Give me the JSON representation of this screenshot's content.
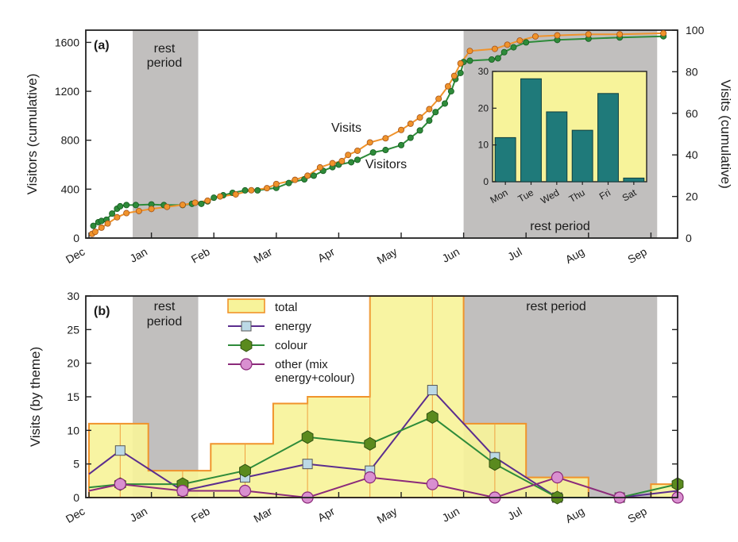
{
  "chart_data": [
    {
      "panel": "(a)",
      "type": "line",
      "xlabel": "",
      "ylabel": "Visitors (cumulative)",
      "ylabel_right": "Visits (cumulative)",
      "month_ticks": [
        "Dec",
        "Jan",
        "Feb",
        "Mar",
        "Apr",
        "May",
        "Jun",
        "Jul",
        "Aug",
        "Sep"
      ],
      "ylim": [
        0,
        1700
      ],
      "yticks": [
        0,
        400,
        800,
        1200,
        1600
      ],
      "ylim_right": [
        0,
        100
      ],
      "yticks_right": [
        0,
        20,
        40,
        60,
        80,
        100
      ],
      "x_unit": "months since Dec 1",
      "rest_periods": [
        {
          "label": "rest\nperiod",
          "label_lines": [
            "rest",
            "period"
          ],
          "start": 0.7,
          "end": 1.75
        },
        {
          "label": "rest period",
          "label_lines": [
            "rest period"
          ],
          "start": 6.0,
          "end": 9.1
        }
      ],
      "series": [
        {
          "name": "Visitors",
          "axis": "left",
          "color": "#2e8b3a",
          "marker": "circle",
          "points": [
            [
              0.07,
              100
            ],
            [
              0.15,
              130
            ],
            [
              0.2,
              140
            ],
            [
              0.28,
              150
            ],
            [
              0.37,
              200
            ],
            [
              0.45,
              240
            ],
            [
              0.5,
              260
            ],
            [
              0.6,
              270
            ],
            [
              0.75,
              270
            ],
            [
              1.0,
              275
            ],
            [
              1.2,
              270
            ],
            [
              1.5,
              270
            ],
            [
              1.65,
              280
            ],
            [
              1.8,
              280
            ],
            [
              1.9,
              300
            ],
            [
              2.0,
              330
            ],
            [
              2.15,
              350
            ],
            [
              2.3,
              370
            ],
            [
              2.5,
              390
            ],
            [
              2.7,
              390
            ],
            [
              3.0,
              410
            ],
            [
              3.2,
              450
            ],
            [
              3.45,
              480
            ],
            [
              3.6,
              510
            ],
            [
              3.75,
              550
            ],
            [
              3.9,
              580
            ],
            [
              4.0,
              600
            ],
            [
              4.2,
              620
            ],
            [
              4.3,
              640
            ],
            [
              4.55,
              700
            ],
            [
              4.75,
              720
            ],
            [
              5.0,
              760
            ],
            [
              5.15,
              820
            ],
            [
              5.3,
              880
            ],
            [
              5.45,
              960
            ],
            [
              5.55,
              1030
            ],
            [
              5.7,
              1100
            ],
            [
              5.8,
              1200
            ],
            [
              5.87,
              1300
            ],
            [
              5.95,
              1350
            ],
            [
              6.0,
              1440
            ],
            [
              6.1,
              1450
            ],
            [
              6.45,
              1460
            ],
            [
              6.55,
              1470
            ],
            [
              6.65,
              1520
            ],
            [
              6.8,
              1560
            ],
            [
              7.0,
              1600
            ],
            [
              7.5,
              1620
            ],
            [
              8.0,
              1630
            ],
            [
              8.5,
              1640
            ],
            [
              9.2,
              1650
            ]
          ]
        },
        {
          "name": "Visits",
          "axis": "right",
          "color": "#f0932b",
          "marker": "circle",
          "points": [
            [
              0.05,
              2
            ],
            [
              0.1,
              3
            ],
            [
              0.2,
              5
            ],
            [
              0.3,
              7
            ],
            [
              0.45,
              10
            ],
            [
              0.6,
              12
            ],
            [
              0.8,
              13
            ],
            [
              1.0,
              14
            ],
            [
              1.25,
              15
            ],
            [
              1.5,
              16
            ],
            [
              1.7,
              17
            ],
            [
              1.9,
              18
            ],
            [
              2.1,
              20
            ],
            [
              2.35,
              21
            ],
            [
              2.6,
              23
            ],
            [
              2.85,
              24
            ],
            [
              3.0,
              26
            ],
            [
              3.3,
              28
            ],
            [
              3.5,
              30
            ],
            [
              3.7,
              34
            ],
            [
              3.9,
              36
            ],
            [
              4.05,
              37
            ],
            [
              4.15,
              40
            ],
            [
              4.3,
              42
            ],
            [
              4.5,
              46
            ],
            [
              4.75,
              48
            ],
            [
              5.0,
              52
            ],
            [
              5.15,
              55
            ],
            [
              5.3,
              58
            ],
            [
              5.45,
              62
            ],
            [
              5.6,
              67
            ],
            [
              5.75,
              73
            ],
            [
              5.85,
              78
            ],
            [
              5.95,
              84
            ],
            [
              6.1,
              90
            ],
            [
              6.5,
              91
            ],
            [
              6.7,
              93
            ],
            [
              6.9,
              95
            ],
            [
              7.15,
              97
            ],
            [
              7.5,
              97.5
            ],
            [
              8.0,
              98
            ],
            [
              8.5,
              98
            ],
            [
              9.2,
              98.5
            ]
          ]
        }
      ],
      "annotations": [
        "(a)",
        "Visits",
        "Visitors"
      ]
    },
    {
      "panel": "inset",
      "type": "bar",
      "categories": [
        "Mon",
        "Tue",
        "Wed",
        "Thu",
        "Fri",
        "Sat"
      ],
      "values": [
        12,
        28,
        19,
        14,
        24,
        1
      ],
      "ylim": [
        0,
        30
      ],
      "yticks": [
        0,
        10,
        20,
        30
      ],
      "bar_color": "#1f7a7a",
      "background": "#f7f39a"
    },
    {
      "panel": "(b)",
      "type": "line",
      "xlabel": "",
      "ylabel": "Visits (by theme)",
      "month_ticks": [
        "Dec",
        "Jan",
        "Feb",
        "Mar",
        "Apr",
        "May",
        "Jun",
        "Jul",
        "Aug",
        "Sep"
      ],
      "ylim": [
        0,
        30
      ],
      "yticks": [
        0,
        5,
        10,
        15,
        20,
        25,
        30
      ],
      "rest_periods": [
        {
          "label": "rest\nperiod",
          "label_lines": [
            "rest",
            "period"
          ],
          "start": 0.7,
          "end": 1.75
        },
        {
          "label": "rest period",
          "label_lines": [
            "rest period"
          ],
          "start": 6.0,
          "end": 9.1
        }
      ],
      "total_steps": [
        {
          "start": 0.0,
          "end": 0.95,
          "value": 11
        },
        {
          "start": 0.95,
          "end": 1.95,
          "value": 4
        },
        {
          "start": 1.95,
          "end": 2.95,
          "value": 8
        },
        {
          "start": 2.95,
          "end": 3.5,
          "value": 14
        },
        {
          "start": 3.5,
          "end": 3.95,
          "value": 15
        },
        {
          "start": 3.95,
          "end": 4.5,
          "value": 15
        },
        {
          "start": 4.5,
          "end": 6.0,
          "value": 30
        },
        {
          "start": 6.0,
          "end": 7.0,
          "value": 11
        },
        {
          "start": 7.0,
          "end": 8.0,
          "value": 3
        },
        {
          "start": 8.0,
          "end": 9.0,
          "value": 0
        },
        {
          "start": 9.0,
          "end": 9.5,
          "value": 2
        }
      ],
      "total_dividers": [
        0.5,
        1.5,
        2.5,
        3.5,
        4.5,
        5.5,
        6.5,
        7.5,
        8.5
      ],
      "series": [
        {
          "name": "total",
          "color": "#f7f39a",
          "edge": "#f0932b",
          "marker": "rect"
        },
        {
          "name": "energy",
          "color": "#5b2d8e",
          "marker": "square",
          "marker_fill": "#bcd9e6",
          "points": [
            [
              0.0,
              3.5
            ],
            [
              0.5,
              7
            ],
            [
              1.5,
              1
            ],
            [
              2.5,
              3
            ],
            [
              3.5,
              5
            ],
            [
              4.5,
              4
            ],
            [
              5.5,
              16
            ],
            [
              6.5,
              6
            ],
            [
              7.5,
              0
            ],
            [
              8.5,
              0
            ],
            [
              9.5,
              1
            ]
          ],
          "marker_points": [
            [
              0.5,
              7
            ],
            [
              1.5,
              1
            ],
            [
              2.5,
              3
            ],
            [
              3.5,
              5
            ],
            [
              4.5,
              4
            ],
            [
              5.5,
              16
            ],
            [
              6.5,
              6
            ],
            [
              7.5,
              0
            ],
            [
              8.5,
              0
            ]
          ]
        },
        {
          "name": "colour",
          "color": "#2e8b3a",
          "marker": "hexagon",
          "marker_fill": "#5a8a1e",
          "points": [
            [
              0.0,
              1.5
            ],
            [
              0.5,
              2
            ],
            [
              1.5,
              2
            ],
            [
              2.5,
              4
            ],
            [
              3.5,
              9
            ],
            [
              4.5,
              8
            ],
            [
              5.5,
              12
            ],
            [
              6.5,
              5
            ],
            [
              7.5,
              0
            ],
            [
              8.5,
              0
            ],
            [
              9.5,
              2
            ]
          ],
          "marker_points": [
            [
              0.5,
              2
            ],
            [
              1.5,
              2
            ],
            [
              2.5,
              4
            ],
            [
              3.5,
              9
            ],
            [
              4.5,
              8
            ],
            [
              5.5,
              12
            ],
            [
              6.5,
              5
            ],
            [
              7.5,
              0
            ],
            [
              9.5,
              2
            ]
          ]
        },
        {
          "name": "other (mix energy+colour)",
          "label_lines": [
            "other (mix",
            "energy+colour)"
          ],
          "color": "#8b2a7a",
          "marker": "circle",
          "marker_fill": "#d98fd0",
          "points": [
            [
              0.0,
              1
            ],
            [
              0.5,
              2
            ],
            [
              1.5,
              1
            ],
            [
              2.5,
              1
            ],
            [
              3.5,
              0
            ],
            [
              4.5,
              3
            ],
            [
              5.5,
              2
            ],
            [
              6.5,
              0
            ],
            [
              7.5,
              3
            ],
            [
              8.5,
              0
            ],
            [
              9.5,
              0
            ]
          ],
          "marker_points": [
            [
              0.5,
              2
            ],
            [
              1.5,
              1
            ],
            [
              2.5,
              1
            ],
            [
              3.5,
              0
            ],
            [
              4.5,
              3
            ],
            [
              5.5,
              2
            ],
            [
              6.5,
              0
            ],
            [
              7.5,
              3
            ],
            [
              8.5,
              0
            ],
            [
              9.5,
              0
            ]
          ]
        }
      ],
      "legend_placement": "top-left",
      "annotations": [
        "(b)"
      ]
    }
  ]
}
